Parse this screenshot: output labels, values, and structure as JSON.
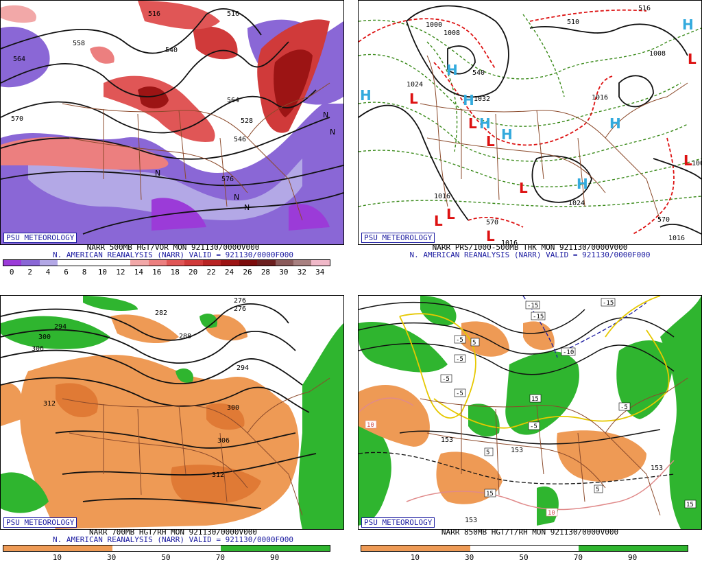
{
  "panels": {
    "tl": {
      "badge": "PSU METEOROLOGY",
      "caption1": "NARR 500MB HGT/VOR MON 921130/0000V000",
      "caption2": "N. AMERICAN REANALYSIS (NARR) VALID = 921130/0000F000",
      "scale_labels": [
        "0",
        "2",
        "4",
        "6",
        "8",
        "10",
        "12",
        "14",
        "16",
        "18",
        "20",
        "22",
        "24",
        "26",
        "28",
        "30",
        "32",
        "34"
      ],
      "scale_colors": [
        "#9b3bd8",
        "#8a67d6",
        "#b3a8e6",
        "#ffffff",
        "#ffffff",
        "#ffffff",
        "#ffffff",
        "#f2a8a8",
        "#ec7f7f",
        "#e05656",
        "#d03a3a",
        "#b82424",
        "#9c1414",
        "#7c0c0c",
        "#6b1f1f",
        "#8a5a5a",
        "#a88080",
        "#f0b8c8"
      ],
      "contour_labels": [
        "516",
        "564",
        "558",
        "564",
        "540",
        "546",
        "576",
        "570",
        "516",
        "528"
      ]
    },
    "tr": {
      "badge": "PSU METEOROLOGY",
      "caption1": "NARR PRS/1000-500MB THK MON 921130/0000V000",
      "caption2": "N. AMERICAN REANALYSIS (NARR) VALID = 921130/0000F000",
      "contour_labels": [
        "1000",
        "1008",
        "510",
        "1024",
        "1032",
        "1016",
        "1024",
        "1016",
        "570",
        "516",
        "1008",
        "1016",
        "570",
        "540",
        "1016",
        "100"
      ]
    },
    "bl": {
      "badge": "PSU METEOROLOGY",
      "caption1": "NARR 700MB HGT/RH MON 921130/0000V000",
      "caption2": "N. AMERICAN REANALYSIS (NARR) VALID = 921130/0000F000",
      "scale_labels": [
        "10",
        "30",
        "50",
        "70",
        "90"
      ],
      "contour_labels": [
        "276",
        "282",
        "294",
        "300",
        "306",
        "288",
        "294",
        "300",
        "306",
        "312",
        "312",
        "276"
      ]
    },
    "br": {
      "badge": "PSU METEOROLOGY",
      "caption1": "NARR 850MB HGT/T/RH MON 921130/0000V000",
      "caption2": "",
      "scale_labels": [
        "10",
        "30",
        "50",
        "70",
        "90"
      ],
      "temp_labels": [
        "-15",
        "-15",
        "-15",
        "-5",
        "-5",
        "-5",
        "-5",
        "-10",
        "-5",
        "-5",
        "5",
        "5",
        "5",
        "15",
        "15",
        "15",
        "10",
        "10"
      ],
      "contour_labels": [
        "153",
        "153",
        "153",
        "153"
      ]
    }
  },
  "colors": {
    "vort_red": "#d03a3a",
    "vort_purple": "#8a67d6",
    "rh_orange": "#ee9a55",
    "rh_green": "#2fb52f",
    "high_blue": "#33aadd",
    "low_red": "#dd1111",
    "border_brown": "#8b4a2b",
    "caption_blue": "#1a1aa0"
  },
  "symbols": {
    "high": "H",
    "low": "L",
    "vort_max": "N"
  }
}
